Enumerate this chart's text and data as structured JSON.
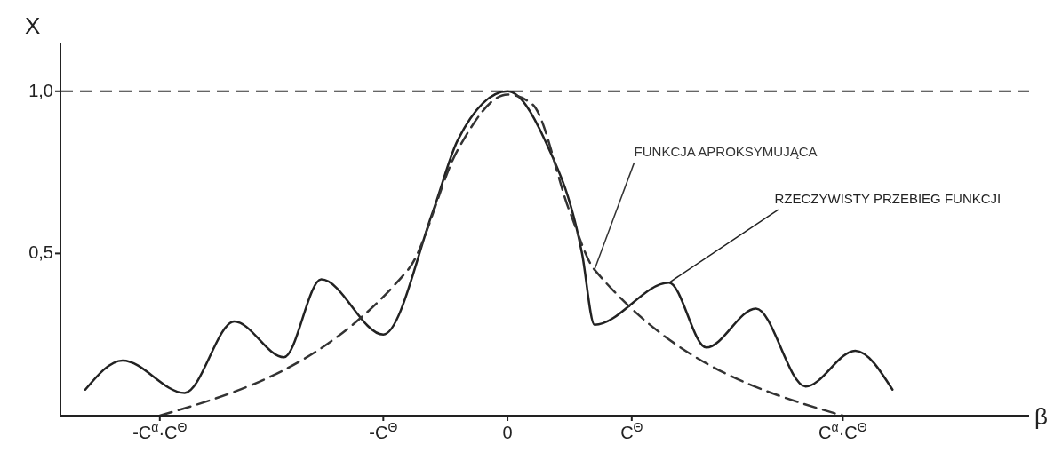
{
  "chart_data": {
    "type": "line",
    "xlabel": "β",
    "ylabel": "X",
    "categories": [
      null,
      null,
      null,
      null,
      null,
      null,
      null,
      null,
      "-C$^{α}$·C$^{Θ}$",
      null,
      null,
      null,
      null,
      null,
      null,
      null,
      null,
      null,
      null,
      null,
      null,
      null,
      null,
      null,
      null,
      null,
      "-C$^{Θ}$",
      null,
      null,
      null,
      null,
      null,
      null,
      null,
      null,
      null,
      "0",
      null,
      null,
      null,
      null,
      null,
      null,
      null,
      null,
      null,
      "C$^{Θ}$",
      null,
      null,
      null,
      null,
      null,
      null,
      null,
      null,
      null,
      null,
      null,
      null,
      null,
      null,
      null,
      null,
      "C$^{α}$·C$^{Θ}$",
      null,
      null,
      null,
      null,
      null,
      null,
      null,
      null,
      null,
      null,
      null,
      null,
      null,
      null,
      null
    ],
    "ylim": [
      0,
      1.15
    ],
    "yticks": [
      {
        "value": 0.5,
        "label": "0,5"
      },
      {
        "value": 1,
        "label": "1,0"
      }
    ],
    "grid": false,
    "legend": false,
    "marker": "none",
    "ref_lines": [
      {
        "axis": "y",
        "value": 1,
        "line_style": "dashed",
        "color": "#333333"
      }
    ],
    "series": [
      {
        "name": "RZECZYWISTY PRZEBIEG FUNKCJI",
        "color": "#222222",
        "line_style": "solid",
        "values": [
          null,
          null,
          0.08,
          null,
          null,
          0.17,
          null,
          null,
          null,
          null,
          0.07,
          null,
          null,
          null,
          0.29,
          null,
          null,
          null,
          0.18,
          null,
          null,
          0.42,
          null,
          null,
          null,
          null,
          0.25,
          null,
          null,
          null,
          0.63,
          null,
          0.85,
          null,
          null,
          null,
          1.0,
          null,
          null,
          0.85,
          null,
          null,
          0.5,
          0.28,
          null,
          null,
          null,
          null,
          null,
          0.41,
          null,
          null,
          0.21,
          null,
          null,
          null,
          0.33,
          null,
          null,
          null,
          0.09,
          null,
          null,
          null,
          0.2,
          null,
          null,
          0.08,
          null,
          null,
          null,
          null,
          null,
          null,
          null,
          null,
          null,
          null,
          null
        ]
      },
      {
        "name": "FUNKCJA APROKSYMUJĄCA",
        "color": "#333333",
        "line_style": "dashed",
        "values": [
          null,
          null,
          null,
          null,
          null,
          null,
          null,
          null,
          0,
          null,
          null,
          null,
          null,
          null,
          null,
          null,
          null,
          null,
          null,
          null,
          null,
          null,
          null,
          null,
          null,
          null,
          null,
          null,
          0.45,
          null,
          null,
          null,
          0.82,
          null,
          null,
          null,
          0.99,
          null,
          0.96,
          null,
          null,
          0.63,
          null,
          0.45,
          null,
          null,
          null,
          null,
          null,
          null,
          null,
          null,
          null,
          null,
          null,
          null,
          null,
          null,
          null,
          null,
          null,
          null,
          null,
          0,
          null,
          null,
          null,
          null,
          null,
          null,
          null,
          null,
          null,
          null,
          null,
          null,
          null,
          null,
          null
        ]
      }
    ]
  }
}
